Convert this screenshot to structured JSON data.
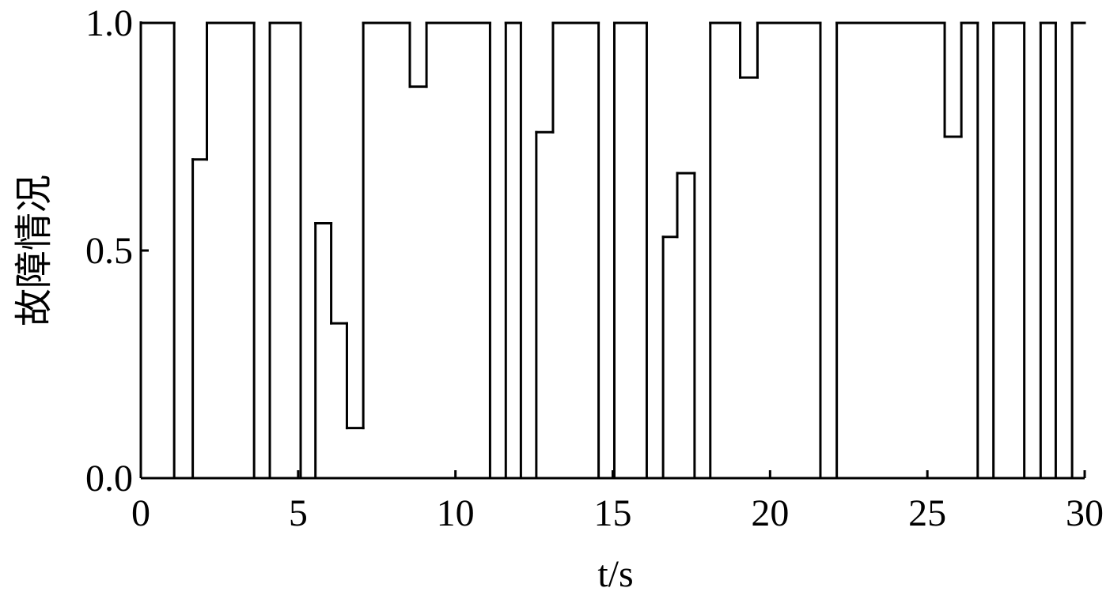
{
  "chart_data": {
    "type": "line",
    "drawstyle": "steps-post",
    "color": "#000000",
    "ylabel": "故障情况",
    "xlabel": "t/s",
    "x": [
      0,
      1.06,
      1.65,
      2.1,
      3.6,
      4.1,
      5.08,
      5.55,
      6.05,
      6.55,
      7.07,
      8.55,
      9.08,
      11.1,
      11.6,
      12.08,
      12.57,
      13.1,
      14.55,
      15.05,
      16.08,
      16.6,
      17.05,
      17.6,
      18.1,
      19.05,
      19.6,
      21.6,
      22.12,
      25.55,
      26.08,
      26.6,
      27.1,
      28.08,
      28.6,
      29.08,
      29.6
    ],
    "values": [
      1,
      0,
      0.7,
      1,
      0,
      1,
      0,
      0.56,
      0.34,
      0.11,
      1,
      0.86,
      1,
      0,
      1,
      0,
      0.76,
      1,
      0,
      1,
      0,
      0.53,
      0.67,
      0,
      1,
      0.88,
      1,
      0,
      1,
      0.75,
      1,
      0,
      1,
      0,
      1,
      0,
      1
    ],
    "xlim": [
      0,
      30
    ],
    "xticks": [
      0,
      5,
      10,
      15,
      20,
      25,
      30
    ],
    "ylim": [
      0,
      1
    ],
    "yticks": [
      {
        "value": 0,
        "label": "0.0"
      },
      0.5,
      {
        "value": 1,
        "label": "1.0"
      }
    ]
  }
}
